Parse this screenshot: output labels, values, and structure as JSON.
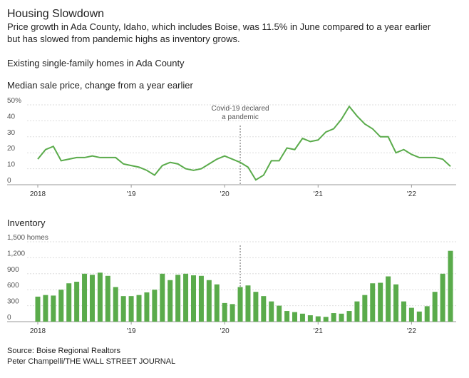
{
  "header": {
    "title": "Housing Slowdown",
    "subtitle": [
      "Price growth in Ada County, Idaho, which includes Boise, was 11.5% in June compared to a year earlier",
      "but has slowed from pandemic highs as inventory grows."
    ],
    "note": "Existing single-family homes in Ada County"
  },
  "chart_data": [
    {
      "type": "line",
      "title": "Median sale price, change from a year earlier",
      "color": "#5aab4b",
      "values": [
        16,
        22,
        24,
        15,
        16,
        17,
        17,
        18,
        17,
        17,
        17,
        13,
        12,
        11,
        9,
        6,
        12,
        14,
        13,
        10,
        9,
        10,
        13,
        16,
        18,
        16,
        14,
        11,
        3,
        6,
        15,
        15,
        23,
        22,
        29,
        27,
        28,
        33,
        35,
        41,
        49,
        43,
        38,
        35,
        30,
        30,
        20,
        22,
        19,
        17,
        17,
        17,
        16,
        11.5
      ],
      "ylim": [
        0,
        50
      ],
      "yticks": [
        0,
        10,
        20,
        30,
        40,
        {
          "value": 50,
          "label": "50%"
        }
      ],
      "xlim": [
        0,
        53
      ],
      "xticks": [
        {
          "value": 0,
          "label": "2018"
        },
        {
          "value": 12,
          "label": "'19"
        },
        {
          "value": 24,
          "label": "'20"
        },
        {
          "value": 36,
          "label": "'21"
        },
        {
          "value": 48,
          "label": "'22"
        }
      ],
      "annotation": [
        "Covid-19 declared",
        "a pandemic"
      ],
      "grid": true
    },
    {
      "type": "bar",
      "title": "Inventory",
      "color": "#5aab4b",
      "values": [
        470,
        500,
        490,
        600,
        720,
        750,
        900,
        880,
        920,
        860,
        650,
        480,
        480,
        500,
        550,
        600,
        900,
        780,
        880,
        900,
        870,
        860,
        780,
        700,
        350,
        330,
        650,
        680,
        560,
        480,
        380,
        300,
        200,
        180,
        150,
        120,
        100,
        90,
        160,
        150,
        200,
        380,
        500,
        720,
        730,
        850,
        700,
        380,
        260,
        190,
        290,
        560,
        900,
        1330
      ],
      "ylim": [
        0,
        1500
      ],
      "yticks": [
        0,
        300,
        600,
        900,
        {
          "value": 1200,
          "label": "1,200"
        },
        {
          "value": 1500,
          "label": "1,500 homes"
        }
      ],
      "xlim": [
        0,
        53
      ],
      "xticks": [
        {
          "value": 0,
          "label": "2018"
        },
        {
          "value": 12,
          "label": "'19"
        },
        {
          "value": 24,
          "label": "'20"
        },
        {
          "value": 36,
          "label": "'21"
        },
        {
          "value": 48,
          "label": "'22"
        }
      ],
      "grid": true
    }
  ],
  "footer": {
    "source": "Source: Boise Regional Realtors",
    "credit": "Peter Champelli/THE WALL STREET JOURNAL"
  }
}
